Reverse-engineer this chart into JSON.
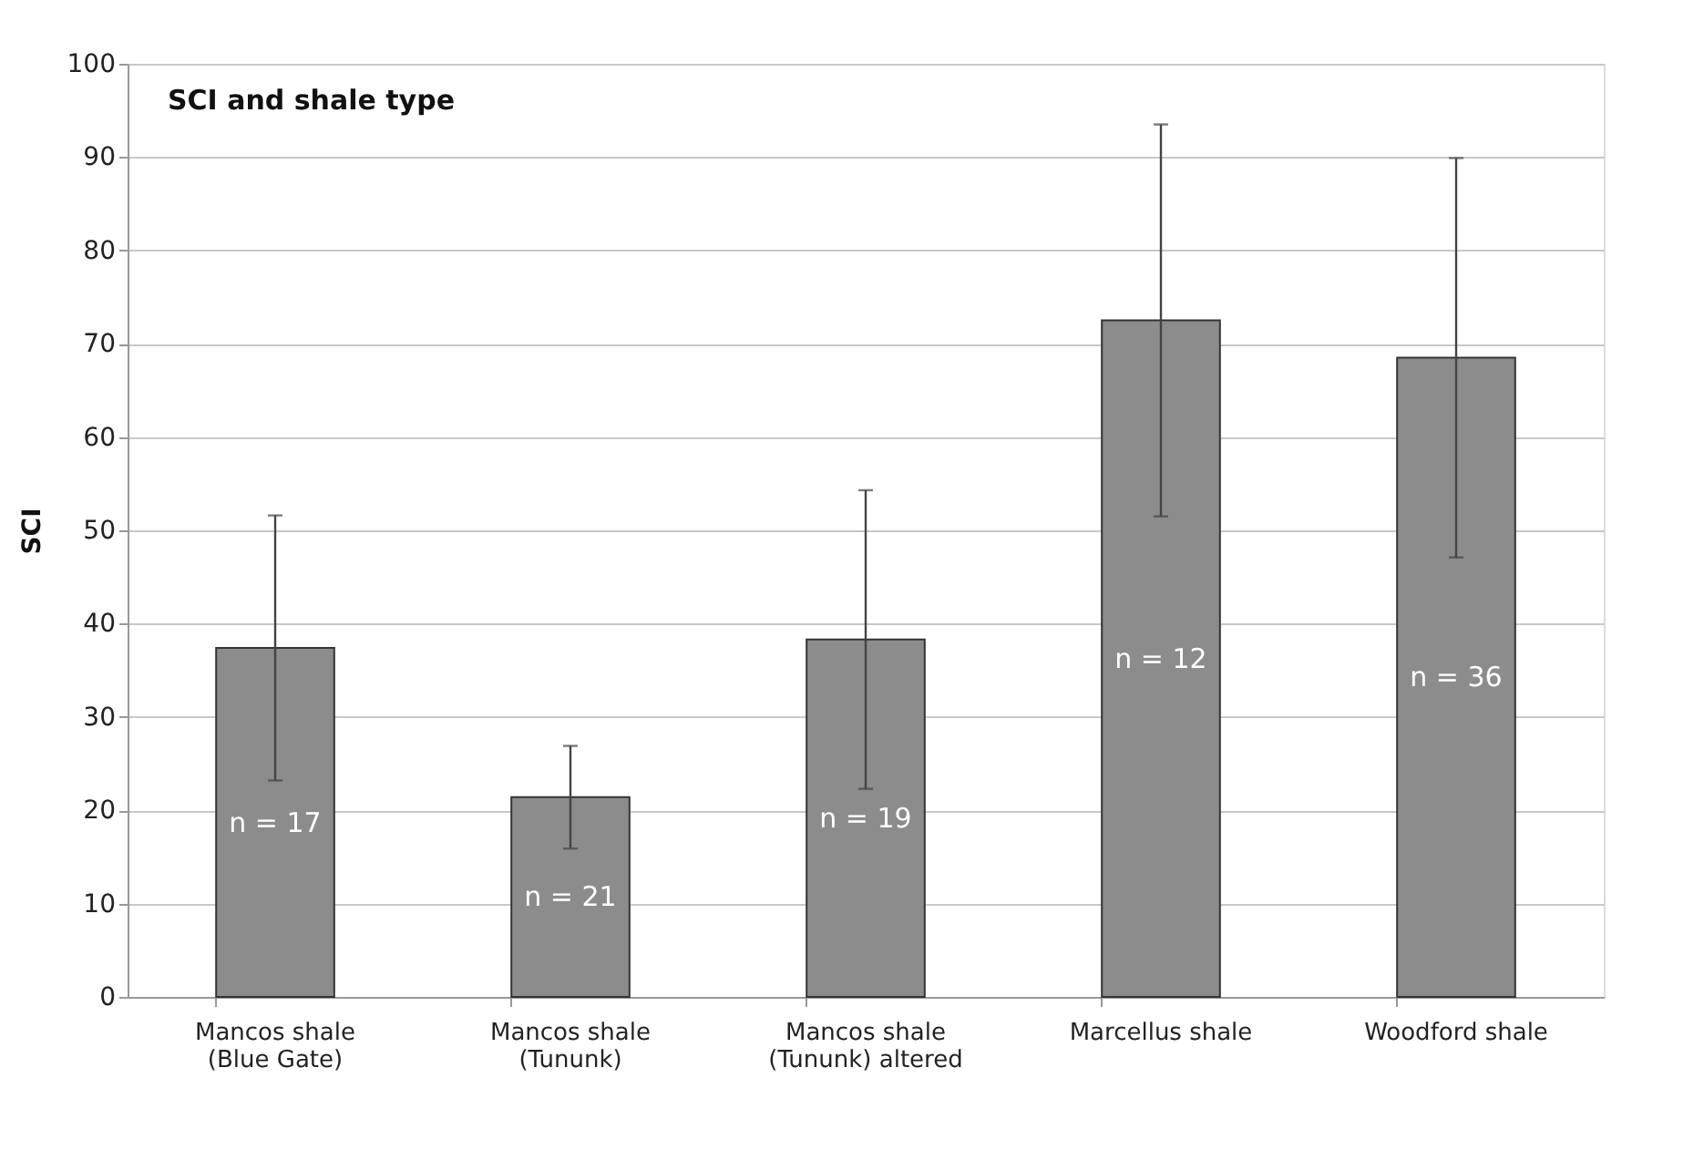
{
  "chart_data": {
    "type": "bar",
    "title": "SCI and shale type",
    "ylabel": "SCI",
    "categories": [
      "Mancos shale (Blue Gate)",
      "Mancos shale (Tununk)",
      "Mancos shale (Tununk) altered",
      "Marcellus shale",
      "Woodford shale"
    ],
    "values": [
      37.4,
      21.4,
      38.3,
      72.5,
      68.5
    ],
    "errors": [
      14.2,
      5.5,
      16.0,
      21.0,
      21.4
    ],
    "color": "#8c8c8c",
    "ylim": [
      0,
      100
    ],
    "yticks": [
      0,
      10,
      20,
      30,
      40,
      50,
      60,
      70,
      80,
      90,
      100
    ],
    "grid": "y",
    "annotations": [
      "n = 17",
      "n = 21",
      "n = 19",
      "n = 12",
      "n = 36"
    ]
  }
}
